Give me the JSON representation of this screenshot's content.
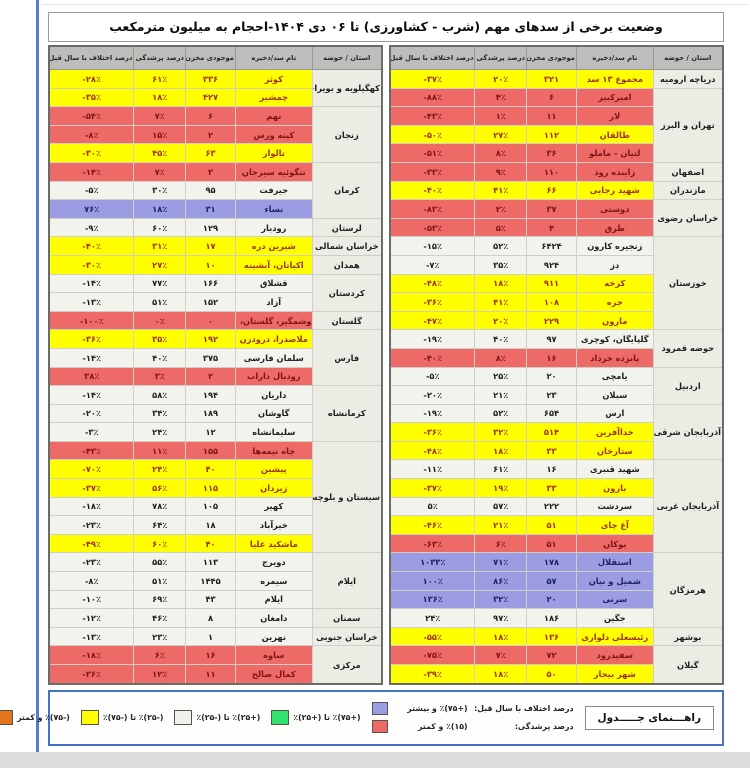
{
  "title": "وضعیت برخی از سدهای مهم (شرب - کشاورزی) تا ۰۶ دی ۱۴۰۴-احجام به میلیون مترمکعب",
  "columns": [
    "استان / حوضه",
    "نام سد/ذخیره",
    "موجودی مخزن",
    "درصد پرشدگی",
    "درصد اختلاف با سال قبل"
  ],
  "row_colors": {
    "yellow": "#ffff00",
    "red": "#ed6a66",
    "purple": "#9b9ce2",
    "white": "#f3f3ee"
  },
  "accent_blue": "#4472c4",
  "tables": [
    {
      "id": "right",
      "groups": [
        {
          "province": "دریاچه ارومیه",
          "rows": [
            {
              "name": "مجموع ۱۳ سد",
              "volume": "۳۲۱",
              "fill": "۲۰٪",
              "diff": "-۳۷٪",
              "color": "yellow"
            }
          ]
        },
        {
          "province": "تهران و البرز",
          "rows": [
            {
              "name": "امیرکبیر",
              "volume": "۶",
              "fill": "۴٪",
              "diff": "-۸۸٪",
              "color": "red"
            },
            {
              "name": "لار",
              "volume": "۱۱",
              "fill": "۱٪",
              "diff": "-۴۳٪",
              "color": "red"
            },
            {
              "name": "طالقان",
              "volume": "۱۱۲",
              "fill": "۲۷٪",
              "diff": "-۵۰٪",
              "color": "yellow"
            },
            {
              "name": "لتیان - ماملو",
              "volume": "۳۶",
              "fill": "۸٪",
              "diff": "-۵۱٪",
              "color": "red"
            }
          ]
        },
        {
          "province": "اصفهان",
          "rows": [
            {
              "name": "زاینده رود",
              "volume": "۱۱۰",
              "fill": "۹٪",
              "diff": "-۳۳٪",
              "color": "red"
            }
          ]
        },
        {
          "province": "مازندران",
          "rows": [
            {
              "name": "شهید رجایی",
              "volume": "۶۶",
              "fill": "۴۱٪",
              "diff": "-۴۰٪",
              "color": "yellow"
            }
          ]
        },
        {
          "province": "خراسان رضوی",
          "rows": [
            {
              "name": "دوستی",
              "volume": "۳۷",
              "fill": "۲٪",
              "diff": "-۸۳٪",
              "color": "red"
            },
            {
              "name": "طرق",
              "volume": "۴",
              "fill": "۵٪",
              "diff": "-۵۳٪",
              "color": "red"
            }
          ]
        },
        {
          "province": "خوزستان",
          "rows": [
            {
              "name": "زنجیره کارون",
              "volume": "۶۴۲۴",
              "fill": "۵۲٪",
              "diff": "-۱۵٪",
              "color": "white"
            },
            {
              "name": "دز",
              "volume": "۹۲۴",
              "fill": "۳۵٪",
              "diff": "-۷٪",
              "color": "white"
            },
            {
              "name": "کرخه",
              "volume": "۹۱۱",
              "fill": "۱۸٪",
              "diff": "-۴۸٪",
              "color": "yellow"
            },
            {
              "name": "جره",
              "volume": "۱۰۸",
              "fill": "۴۱٪",
              "diff": "-۳۶٪",
              "color": "yellow"
            },
            {
              "name": "مارون",
              "volume": "۲۲۹",
              "fill": "۲۰٪",
              "diff": "-۴۷٪",
              "color": "yellow"
            }
          ]
        },
        {
          "province": "حوضه قمرود",
          "rows": [
            {
              "name": "گلپایگان، کوچری",
              "volume": "۹۷",
              "fill": "۴۰٪",
              "diff": "-۱۹٪",
              "color": "white"
            },
            {
              "name": "پانزده خرداد",
              "volume": "۱۶",
              "fill": "۸٪",
              "diff": "-۴۰٪",
              "color": "red"
            }
          ]
        },
        {
          "province": "اردبیل",
          "rows": [
            {
              "name": "یامچی",
              "volume": "۲۰",
              "fill": "۲۵٪",
              "diff": "-۵٪",
              "color": "white"
            },
            {
              "name": "سبلان",
              "volume": "۲۳",
              "fill": "۲۱٪",
              "diff": "-۲۰٪",
              "color": "white"
            }
          ]
        },
        {
          "province": "آذربایجان شرقی",
          "rows": [
            {
              "name": "ارس",
              "volume": "۶۵۴",
              "fill": "۵۲٪",
              "diff": "-۱۹٪",
              "color": "white"
            },
            {
              "name": "خداآفرین",
              "volume": "۵۱۴",
              "fill": "۳۲٪",
              "diff": "-۳۶٪",
              "color": "yellow"
            },
            {
              "name": "ستارخان",
              "volume": "۳۳",
              "fill": "۱۸٪",
              "diff": "-۴۸٪",
              "color": "yellow"
            }
          ]
        },
        {
          "province": "آذربایجان غربی",
          "rows": [
            {
              "name": "شهید قنبری",
              "volume": "۱۶",
              "fill": "۶۱٪",
              "diff": "-۱۱٪",
              "color": "white"
            },
            {
              "name": "بارون",
              "volume": "۳۳",
              "fill": "۱۹٪",
              "diff": "-۳۷٪",
              "color": "yellow"
            },
            {
              "name": "سردشت",
              "volume": "۲۲۲",
              "fill": "۵۷٪",
              "diff": "۵٪",
              "color": "white"
            },
            {
              "name": "آغ چای",
              "volume": "۵۱",
              "fill": "۲۱٪",
              "diff": "-۴۶٪",
              "color": "yellow"
            },
            {
              "name": "بوکان",
              "volume": "۵۱",
              "fill": "۶٪",
              "diff": "-۶۳٪",
              "color": "red"
            }
          ]
        },
        {
          "province": "هرمزگان",
          "rows": [
            {
              "name": "استقلال",
              "volume": "۱۷۸",
              "fill": "۷۱٪",
              "diff": "۱۰۳۳٪",
              "color": "purple"
            },
            {
              "name": "شمیل و نیان",
              "volume": "۵۷",
              "fill": "۸۶٪",
              "diff": "۱۰۰٪",
              "color": "purple"
            },
            {
              "name": "سرنی",
              "volume": "۲۰",
              "fill": "۳۲٪",
              "diff": "۱۳۶٪",
              "color": "purple"
            },
            {
              "name": "جگین",
              "volume": "۱۸۶",
              "fill": "۹۷٪",
              "diff": "۲۴٪",
              "color": "white"
            }
          ]
        },
        {
          "province": "بوشهر",
          "rows": [
            {
              "name": "رئیسعلی دلواری",
              "volume": "۱۳۶",
              "fill": "۱۸٪",
              "diff": "-۵۵٪",
              "color": "yellow"
            }
          ]
        },
        {
          "province": "گیلان",
          "rows": [
            {
              "name": "سفیدرود",
              "volume": "۷۲",
              "fill": "۷٪",
              "diff": "-۷۵٪",
              "color": "red"
            },
            {
              "name": "شهر بیجار",
              "volume": "۵۰",
              "fill": "۱۸٪",
              "diff": "-۳۹٪",
              "color": "yellow"
            }
          ]
        }
      ]
    },
    {
      "id": "left",
      "groups": [
        {
          "province": "کهگیلویه و بویراحمد",
          "rows": [
            {
              "name": "کوثر",
              "volume": "۳۳۶",
              "fill": "۶۱٪",
              "diff": "-۲۸٪",
              "color": "yellow"
            },
            {
              "name": "چمشیر",
              "volume": "۴۲۷",
              "fill": "۱۸٪",
              "diff": "-۳۵٪",
              "color": "yellow"
            }
          ]
        },
        {
          "province": "زنجان",
          "rows": [
            {
              "name": "تهم",
              "volume": "۶",
              "fill": "۷٪",
              "diff": "-۵۴٪",
              "color": "red"
            },
            {
              "name": "کینه ورس",
              "volume": "۲",
              "fill": "۱۵٪",
              "diff": "-۸٪",
              "color": "red"
            },
            {
              "name": "تالوار",
              "volume": "۶۳",
              "fill": "۴۵٪",
              "diff": "-۳۰٪",
              "color": "yellow"
            }
          ]
        },
        {
          "province": "کرمان",
          "rows": [
            {
              "name": "تنگوئیه سیرجان",
              "volume": "۳",
              "fill": "۷٪",
              "diff": "-۱۴٪",
              "color": "red"
            },
            {
              "name": "جیرفت",
              "volume": "۹۵",
              "fill": "۳۰٪",
              "diff": "-۵٪",
              "color": "white"
            },
            {
              "name": "نساء",
              "volume": "۳۱",
              "fill": "۱۸٪",
              "diff": "۷۶٪",
              "color": "purple"
            }
          ]
        },
        {
          "province": "لرستان",
          "rows": [
            {
              "name": "رودبار",
              "volume": "۱۲۹",
              "fill": "۶۰٪",
              "diff": "-۹٪",
              "color": "white"
            }
          ]
        },
        {
          "province": "خراسان شمالی",
          "rows": [
            {
              "name": "شیرین دره",
              "volume": "۱۷",
              "fill": "۳۱٪",
              "diff": "-۴۰٪",
              "color": "yellow"
            }
          ]
        },
        {
          "province": "همدان",
          "rows": [
            {
              "name": "اکباتان، آبشینه",
              "volume": "۱۰",
              "fill": "۲۷٪",
              "diff": "-۳۰٪",
              "color": "yellow"
            }
          ]
        },
        {
          "province": "کردستان",
          "rows": [
            {
              "name": "قشلاق",
              "volume": "۱۶۶",
              "fill": "۷۷٪",
              "diff": "-۱۴٪",
              "color": "white"
            },
            {
              "name": "آزاد",
              "volume": "۱۵۲",
              "fill": "۵۱٪",
              "diff": "-۱۳٪",
              "color": "white"
            }
          ]
        },
        {
          "province": "گلستان",
          "rows": [
            {
              "name": "وشمگیر، گلستان، بوستان",
              "volume": "۰",
              "fill": "۰٪",
              "diff": "-۱۰۰٪",
              "color": "red"
            }
          ]
        },
        {
          "province": "فارس",
          "rows": [
            {
              "name": "ملاصدرا، درودزن",
              "volume": "۱۹۲",
              "fill": "۳۵٪",
              "diff": "-۳۶٪",
              "color": "yellow"
            },
            {
              "name": "سلمان فارسی",
              "volume": "۳۷۵",
              "fill": "۴۰٪",
              "diff": "-۱۴٪",
              "color": "white"
            },
            {
              "name": "رودبال داراب",
              "volume": "۲",
              "fill": "۳٪",
              "diff": "۳۸٪",
              "color": "red"
            }
          ]
        },
        {
          "province": "کرمانشاه",
          "rows": [
            {
              "name": "داریان",
              "volume": "۱۹۴",
              "fill": "۵۸٪",
              "diff": "-۱۴٪",
              "color": "white"
            },
            {
              "name": "گاوشان",
              "volume": "۱۸۹",
              "fill": "۳۴٪",
              "diff": "-۲۰٪",
              "color": "white"
            },
            {
              "name": "سلیمانشاه",
              "volume": "۱۲",
              "fill": "۲۴٪",
              "diff": "-۳٪",
              "color": "white"
            }
          ]
        },
        {
          "province": "سیستان و بلوچستان",
          "rows": [
            {
              "name": "چاه نیمه‌ها",
              "volume": "۱۵۵",
              "fill": "۱۱٪",
              "diff": "-۴۳٪",
              "color": "red"
            },
            {
              "name": "پیشین",
              "volume": "۴۰",
              "fill": "۲۴٪",
              "diff": "-۷۰٪",
              "color": "yellow"
            },
            {
              "name": "زیردان",
              "volume": "۱۱۵",
              "fill": "۵۶٪",
              "diff": "-۳۷٪",
              "color": "yellow"
            },
            {
              "name": "کهیر",
              "volume": "۱۰۵",
              "fill": "۷۸٪",
              "diff": "-۱۸٪",
              "color": "white"
            },
            {
              "name": "خیرآباد",
              "volume": "۱۸",
              "fill": "۶۴٪",
              "diff": "-۲۳٪",
              "color": "white"
            },
            {
              "name": "ماشکید علیا",
              "volume": "۴۰",
              "fill": "۶۰٪",
              "diff": "-۴۹٪",
              "color": "yellow"
            }
          ]
        },
        {
          "province": "ایلام",
          "rows": [
            {
              "name": "دویرج",
              "volume": "۱۱۳",
              "fill": "۵۵٪",
              "diff": "-۲۳٪",
              "color": "white"
            },
            {
              "name": "سیمره",
              "volume": "۱۴۴۵",
              "fill": "۵۱٪",
              "diff": "-۸٪",
              "color": "white"
            },
            {
              "name": "ایلام",
              "volume": "۴۳",
              "fill": "۶۹٪",
              "diff": "-۱۰٪",
              "color": "white"
            }
          ]
        },
        {
          "province": "سمنان",
          "rows": [
            {
              "name": "دامغان",
              "volume": "۸",
              "fill": "۴۶٪",
              "diff": "-۱۲٪",
              "color": "white"
            }
          ]
        },
        {
          "province": "خراسان جنوبی",
          "rows": [
            {
              "name": "نهرین",
              "volume": "۱",
              "fill": "۲۳٪",
              "diff": "-۱۳٪",
              "color": "white"
            }
          ]
        },
        {
          "province": "مرکزی",
          "rows": [
            {
              "name": "ساوه",
              "volume": "۱۶",
              "fill": "۶٪",
              "diff": "-۱۸٪",
              "color": "red"
            },
            {
              "name": "کمال صالح",
              "volume": "۱۱",
              "fill": "۱۲٪",
              "diff": "-۳۶٪",
              "color": "red"
            }
          ]
        }
      ]
    }
  ],
  "legend": {
    "title": "راهـــنمای جـــــدول",
    "diff_label": "درصد اختلاف با سال قبل:",
    "purple_label": "(+۷۵)٪ و بیشتر",
    "fill_label": "درصد پرشدگی:",
    "red_label": "(۱۵)٪ و کمتر",
    "items": [
      {
        "key": "green",
        "label": "(+۷۵)٪ تا (+۲۵)٪",
        "color": "#31e36e"
      },
      {
        "key": "white",
        "label": "(+۲۵)٪ تا (-۲۵)٪",
        "color": "#f1f1ea"
      },
      {
        "key": "yellow",
        "label": "(-۲۵)٪ تا (-۷۵)٪",
        "color": "#ffff00"
      },
      {
        "key": "orange",
        "label": "(-۷۵)٪ و کمتر",
        "color": "#e2761d"
      }
    ]
  }
}
